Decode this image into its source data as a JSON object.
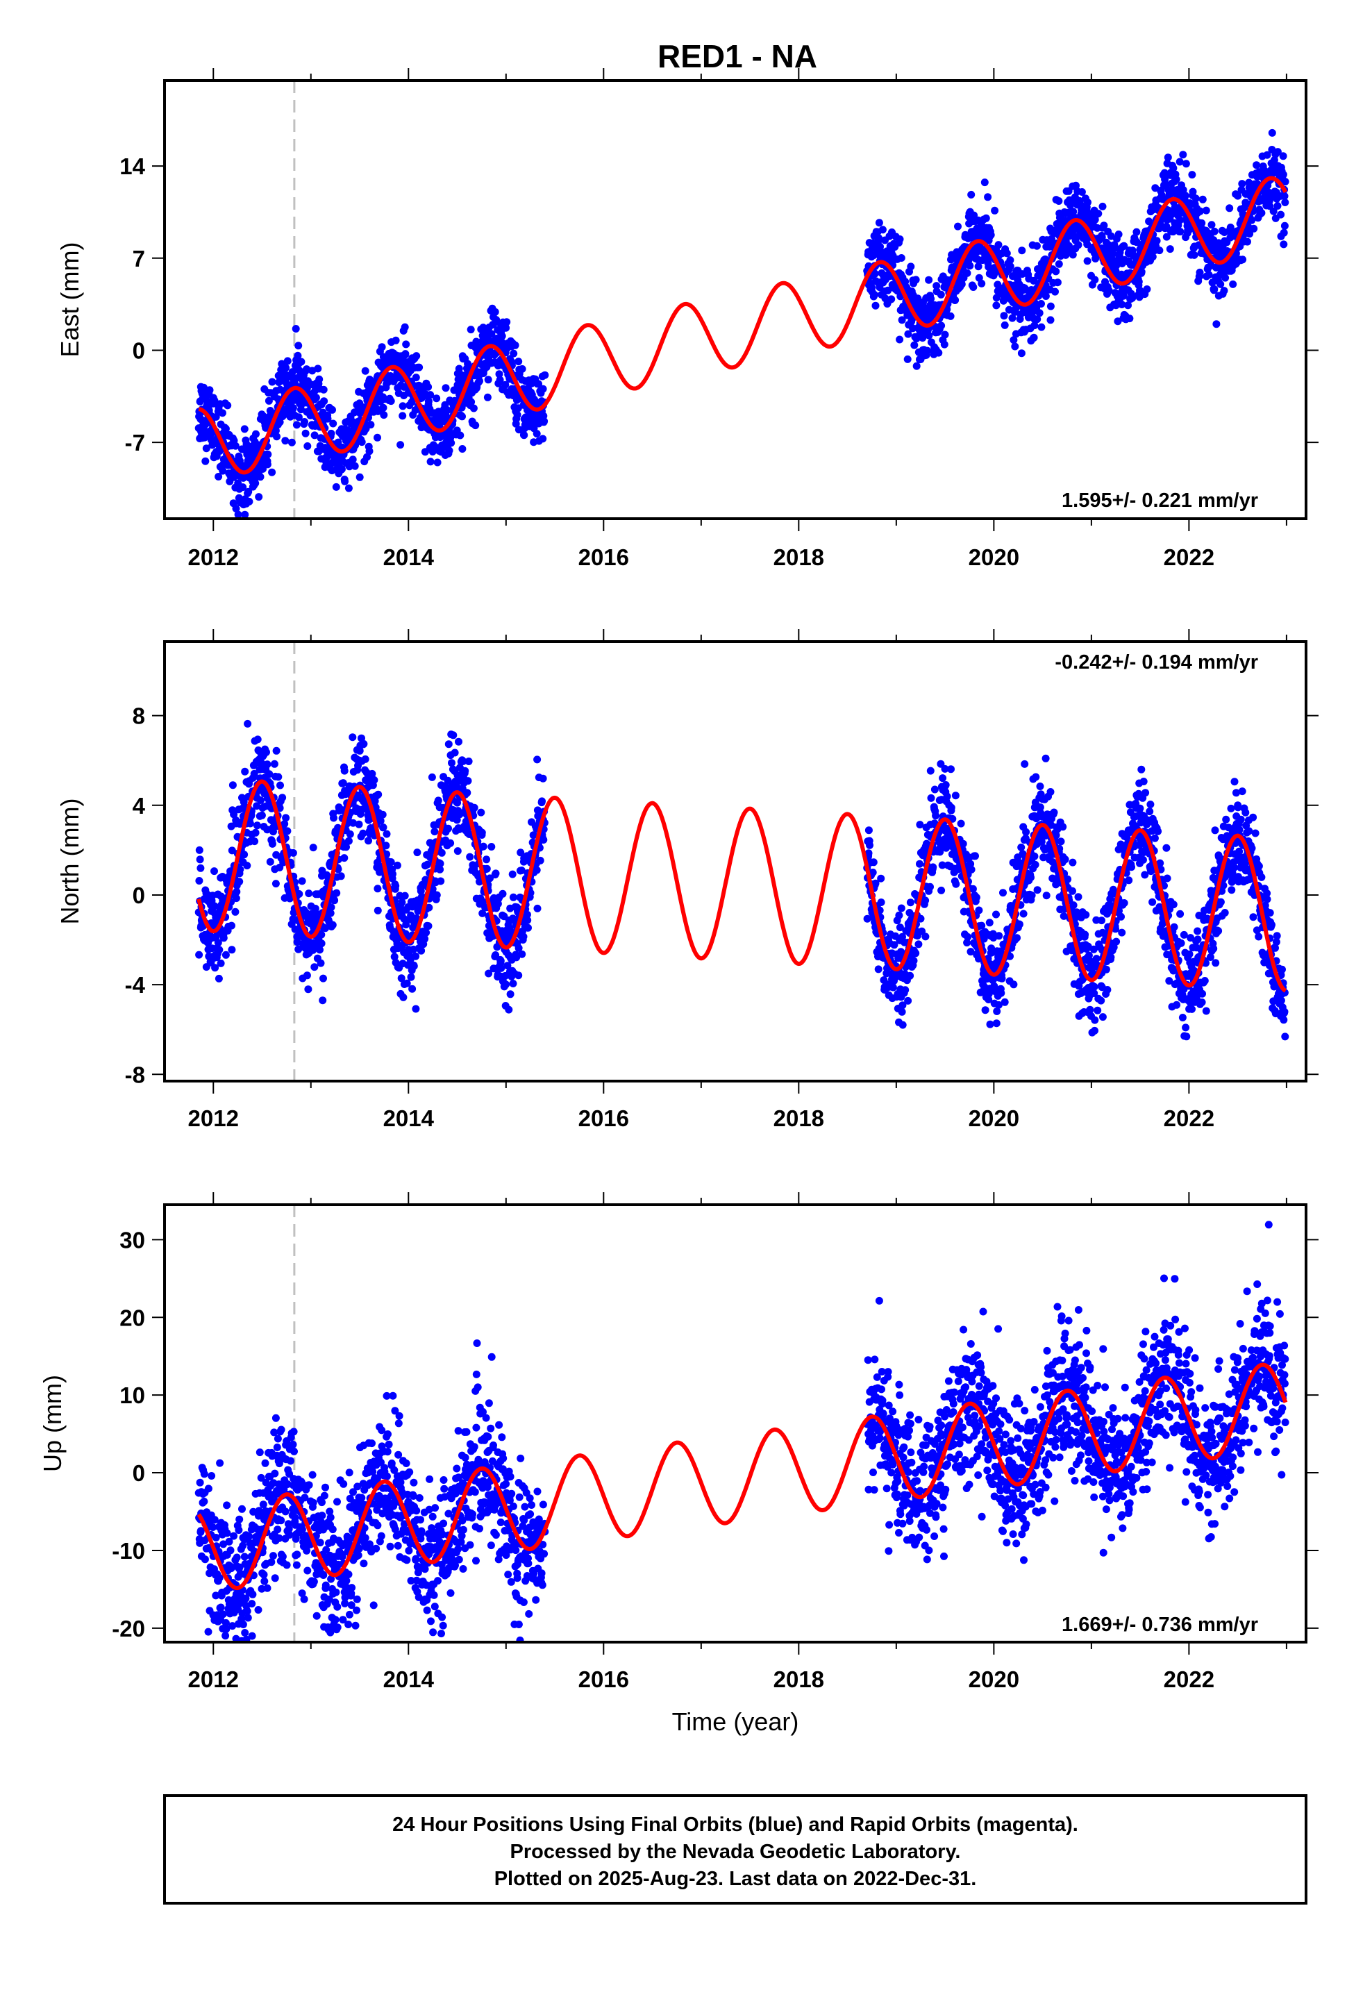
{
  "title": "RED1 - NA",
  "colors": {
    "data_points": "#0000ff",
    "model_curve": "#ff0000",
    "event_line": "#c0c0c0",
    "frame": "#000000"
  },
  "chart_data": [
    {
      "type": "scatter",
      "name": "east",
      "ylabel": "East (mm)",
      "xlabel": "",
      "xlim": [
        2011.5,
        2023.2
      ],
      "ylim": [
        -12.8,
        20.5
      ],
      "xticks": [
        2012,
        2014,
        2016,
        2018,
        2020,
        2022
      ],
      "yticks": [
        -7,
        0,
        7,
        14
      ],
      "event_lines": [
        2012.83
      ],
      "rate_label": "1.595+/- 0.221 mm/yr",
      "model": {
        "slope": 1.595,
        "ref_year": 2017.3,
        "offset": 1.45,
        "annual_amp": 2.8,
        "annual_phase_year": 2012.83
      },
      "data_segments": [
        {
          "start": 2011.85,
          "end": 2015.4
        },
        {
          "start": 2018.7,
          "end": 2022.99
        }
      ],
      "scatter_sigma": 1.4,
      "series": [
        {
          "name": "24 Hour Positions",
          "kind": "points"
        },
        {
          "name": "Model",
          "kind": "line"
        }
      ]
    },
    {
      "type": "scatter",
      "name": "north",
      "ylabel": "North (mm)",
      "xlabel": "",
      "xlim": [
        2011.5,
        2023.2
      ],
      "ylim": [
        -8.3,
        11.3
      ],
      "xticks": [
        2012,
        2014,
        2016,
        2018,
        2020,
        2022
      ],
      "yticks": [
        -8,
        -4,
        0,
        4,
        8
      ],
      "event_lines": [
        2012.83
      ],
      "rate_label": "-0.242+/- 0.194 mm/yr",
      "model": {
        "slope": -0.242,
        "ref_year": 2017.3,
        "offset": 0.5,
        "annual_amp": 3.4,
        "annual_phase_year": 2012.5
      },
      "data_segments": [
        {
          "start": 2011.85,
          "end": 2015.4
        },
        {
          "start": 2018.7,
          "end": 2022.99
        }
      ],
      "scatter_sigma": 1.1,
      "series": [
        {
          "name": "24 Hour Positions",
          "kind": "points"
        },
        {
          "name": "Model",
          "kind": "line"
        }
      ]
    },
    {
      "type": "scatter",
      "name": "up",
      "ylabel": "Up (mm)",
      "xlabel": "Time (year)",
      "xlim": [
        2011.5,
        2023.2
      ],
      "ylim": [
        -21.8,
        34.5
      ],
      "xticks": [
        2012,
        2014,
        2016,
        2018,
        2020,
        2022
      ],
      "yticks": [
        -20,
        -10,
        0,
        10,
        20,
        30
      ],
      "event_lines": [
        2012.83
      ],
      "rate_label": "1.669+/- 0.736 mm/yr",
      "model": {
        "slope": 1.669,
        "ref_year": 2017.3,
        "offset": -0.8,
        "annual_amp": 5.6,
        "annual_phase_year": 2012.75
      },
      "data_segments": [
        {
          "start": 2011.85,
          "end": 2015.4
        },
        {
          "start": 2018.7,
          "end": 2022.99
        }
      ],
      "scatter_sigma": 4.3,
      "series": [
        {
          "name": "24 Hour Positions",
          "kind": "points"
        },
        {
          "name": "Model",
          "kind": "line"
        }
      ]
    }
  ],
  "footer": {
    "lines": [
      "24 Hour Positions Using Final Orbits (blue) and Rapid Orbits (magenta).",
      "Processed by the Nevada Geodetic Laboratory.",
      "Plotted on 2025-Aug-23. Last data on 2022-Dec-31."
    ]
  }
}
